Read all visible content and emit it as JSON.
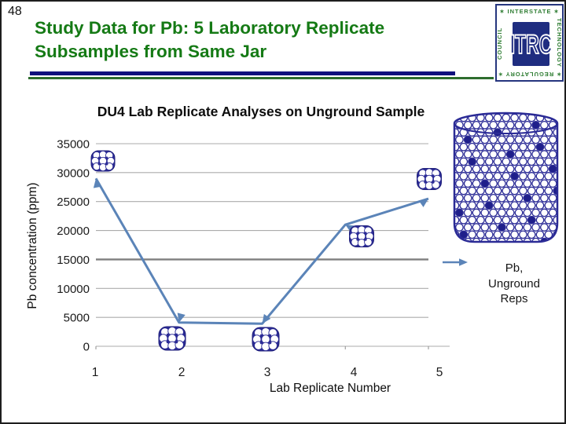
{
  "slide": {
    "number": "48",
    "title_lines": [
      "Study Data for Pb: 5 Laboratory Replicate",
      "Subsamples from Same Jar"
    ],
    "title_color": "#157a15"
  },
  "logo": {
    "center": "ITRC",
    "top": "INTERSTATE",
    "right": "TECHNOLOGY",
    "bottom": "REGULATORY",
    "left": "COUNCIL",
    "star": "✶",
    "green": "#2e7d32",
    "navy": "#1f2d80"
  },
  "chart_data": {
    "type": "line",
    "title": "DU4 Lab Replicate Analyses on Unground Sample",
    "xlabel": "Lab Replicate Number",
    "ylabel": "Pb concentration (ppm)",
    "x": [
      1,
      2,
      3,
      4,
      5
    ],
    "xtick_labels": [
      "1",
      "2",
      "3",
      "4",
      "5"
    ],
    "series": [
      {
        "name": "Pb, Unground Reps",
        "values": [
          29000,
          4100,
          3900,
          21000,
          25500
        ]
      }
    ],
    "ylim": [
      0,
      35000
    ],
    "yticks": [
      35000,
      30000,
      25000,
      20000,
      15000,
      10000,
      5000,
      0
    ],
    "grid": true,
    "emphasized_gridline": 15000,
    "line_color": "#5b84b8",
    "gridline_color": "#ababab",
    "emphasized_gridline_color": "#7f7f7f",
    "legend_position": "right",
    "legend_label_lines": [
      "Pb,",
      "Unground",
      "Reps"
    ],
    "illustration_color": "#2b2b96"
  }
}
